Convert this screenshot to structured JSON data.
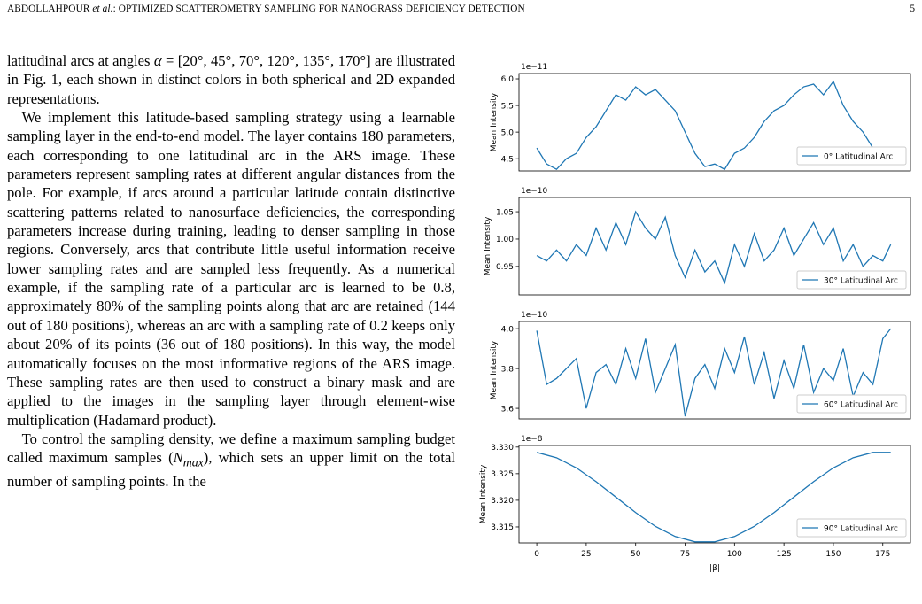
{
  "header": {
    "author": "ABDOLLAHPOUR ",
    "etal": "et al.",
    "title": ": OPTIMIZED SCATTEROMETRY SAMPLING FOR NANOGRASS DEFICIENCY DETECTION",
    "page": "5"
  },
  "paragraphs": [
    {
      "parts": [
        "latitudinal arcs at angles ",
        "α",
        " = [20°, 45°, 70°, 120°, 135°, 170°] are illustrated in Fig. 1, each shown in distinct colors in both spherical and 2D expanded representations."
      ]
    },
    {
      "parts": [
        "We implement this latitude-based sampling strategy using a learnable sampling layer in the end-to-end model. The layer contains 180 parameters, each corresponding to one latitudinal arc in the ARS image. These parameters represent sampling rates at different angular distances from the pole. For example, if arcs around a particular latitude contain distinctive scattering patterns related to nanosurface deficiencies, the corresponding parameters increase during training, leading to denser sampling in those regions. Conversely, arcs that contribute little useful information receive lower sampling rates and are sampled less frequently. As a numerical example, if the sampling rate of a particular arc is learned to be 0.8, approximately 80% of the sampling points along that arc are retained (144 out of 180 positions), whereas an arc with a sampling rate of 0.2 keeps only about 20% of its points (36 out of 180 positions). In this way, the model automatically focuses on the most informative regions of the ARS image. These sampling rates are then used to construct a binary mask and are applied to the images in the sampling layer through element-wise multiplication (Hadamard product)."
      ]
    },
    {
      "parts": [
        "To control the sampling density, we define a maximum sampling budget called maximum samples (",
        "N",
        "max",
        "), which sets an upper limit on the total number of sampling points. In the"
      ]
    }
  ],
  "chart_data": [
    {
      "type": "line",
      "offset_label": "1e−11",
      "ylabel": "Mean Intensity",
      "legend": "lower right",
      "x": [
        0,
        5,
        10,
        15,
        20,
        25,
        30,
        35,
        40,
        45,
        50,
        55,
        60,
        65,
        70,
        75,
        80,
        85,
        90,
        95,
        100,
        105,
        110,
        115,
        120,
        125,
        130,
        135,
        140,
        145,
        150,
        155,
        160,
        165,
        170,
        175,
        179
      ],
      "series": [
        {
          "name": "0° Latitudinal Arc",
          "color": "#1f77b4",
          "values": [
            4.7,
            4.4,
            4.3,
            4.5,
            4.6,
            4.9,
            5.1,
            5.4,
            5.7,
            5.6,
            5.85,
            5.7,
            5.8,
            5.6,
            5.4,
            5.0,
            4.6,
            4.35,
            4.4,
            4.3,
            4.6,
            4.7,
            4.9,
            5.2,
            5.4,
            5.5,
            5.7,
            5.85,
            5.9,
            5.7,
            5.95,
            5.5,
            5.2,
            5.0,
            4.7,
            4.5,
            4.4
          ]
        }
      ],
      "xlim": [
        -9,
        189
      ],
      "ylim": [
        4.27,
        6.1
      ],
      "yticks": [
        4.5,
        {
          "value": 5,
          "label": "5.0"
        },
        5.5,
        {
          "value": 6,
          "label": "6.0"
        }
      ]
    },
    {
      "type": "line",
      "offset_label": "1e−10",
      "ylabel": "Mean Intensity",
      "legend": "lower right",
      "x": [
        0,
        5,
        10,
        15,
        20,
        25,
        30,
        35,
        40,
        45,
        50,
        55,
        60,
        65,
        70,
        75,
        80,
        85,
        90,
        95,
        100,
        105,
        110,
        115,
        120,
        125,
        130,
        135,
        140,
        145,
        150,
        155,
        160,
        165,
        170,
        175,
        179
      ],
      "series": [
        {
          "name": "30° Latitudinal Arc",
          "color": "#1f77b4",
          "values": [
            0.97,
            0.96,
            0.98,
            0.96,
            0.99,
            0.97,
            1.02,
            0.98,
            1.03,
            0.99,
            1.05,
            1.02,
            1.0,
            1.04,
            0.97,
            0.93,
            0.98,
            0.94,
            0.96,
            0.92,
            0.99,
            0.95,
            1.01,
            0.96,
            0.98,
            1.02,
            0.97,
            1.0,
            1.03,
            0.99,
            1.02,
            0.96,
            0.99,
            0.95,
            0.97,
            0.96,
            0.99
          ]
        }
      ],
      "xlim": [
        -9,
        189
      ],
      "ylim": [
        0.898,
        1.076
      ],
      "yticks": [
        0.95,
        {
          "value": 1,
          "label": "1.00"
        },
        1.05
      ]
    },
    {
      "type": "line",
      "offset_label": "1e−10",
      "ylabel": "Mean Intensity",
      "legend": "lower right",
      "x": [
        0,
        5,
        10,
        15,
        20,
        25,
        30,
        35,
        40,
        45,
        50,
        55,
        60,
        65,
        70,
        75,
        80,
        85,
        90,
        95,
        100,
        105,
        110,
        115,
        120,
        125,
        130,
        135,
        140,
        145,
        150,
        155,
        160,
        165,
        170,
        175,
        179
      ],
      "series": [
        {
          "name": "60° Latitudinal Arc",
          "color": "#1f77b4",
          "values": [
            3.99,
            3.72,
            3.75,
            3.8,
            3.85,
            3.6,
            3.78,
            3.82,
            3.72,
            3.9,
            3.75,
            3.95,
            3.68,
            3.8,
            3.92,
            3.56,
            3.75,
            3.82,
            3.7,
            3.9,
            3.78,
            3.96,
            3.72,
            3.88,
            3.65,
            3.84,
            3.7,
            3.92,
            3.68,
            3.8,
            3.74,
            3.9,
            3.66,
            3.78,
            3.72,
            3.95,
            4.0
          ]
        }
      ],
      "xlim": [
        -9,
        189
      ],
      "ylim": [
        3.547,
        4.036
      ],
      "yticks": [
        3.6,
        3.8,
        {
          "value": 4,
          "label": "4.0"
        }
      ]
    },
    {
      "type": "line",
      "offset_label": "1e−8",
      "ylabel": "Mean Intensity",
      "xlabel": "|β|",
      "legend": "lower right",
      "x": [
        0,
        10,
        20,
        30,
        40,
        50,
        60,
        70,
        80,
        90,
        100,
        110,
        120,
        130,
        140,
        150,
        160,
        170,
        179
      ],
      "series": [
        {
          "name": "90° Latitudinal Arc",
          "color": "#1f77b4",
          "values": [
            3.329,
            3.328,
            3.3261,
            3.3235,
            3.3206,
            3.3177,
            3.3151,
            3.3132,
            3.3122,
            3.3122,
            3.3132,
            3.3151,
            3.3177,
            3.3206,
            3.3235,
            3.3261,
            3.328,
            3.329,
            3.329
          ]
        }
      ],
      "xlim": [
        -9,
        189
      ],
      "xticks": [
        0,
        25,
        50,
        75,
        100,
        125,
        150,
        175
      ],
      "ylim": [
        3.312,
        3.3303
      ],
      "yticks": [
        3.315,
        {
          "value": 3.32,
          "label": "3.320"
        },
        3.325,
        {
          "value": 3.33,
          "label": "3.330"
        }
      ]
    }
  ]
}
